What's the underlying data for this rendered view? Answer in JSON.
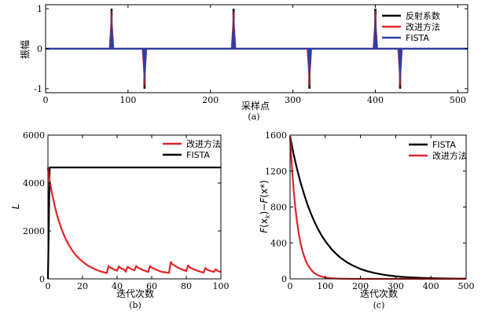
{
  "chart_data": [
    {
      "id": "a",
      "type": "line",
      "caption": "(a)",
      "xlabel": "采样点",
      "ylabel": "振幅",
      "xlim": [
        0,
        512
      ],
      "ylim": [
        -1.1,
        1.1
      ],
      "xticks": [
        0,
        100,
        200,
        300,
        400,
        500
      ],
      "yticks": [
        -1,
        0,
        1
      ],
      "spikes": [
        {
          "x": 80,
          "value": 1
        },
        {
          "x": 120,
          "value": -1
        },
        {
          "x": 228,
          "value": 1
        },
        {
          "x": 320,
          "value": -1
        },
        {
          "x": 400,
          "value": 1
        },
        {
          "x": 430,
          "value": -1
        }
      ],
      "series": [
        {
          "name": "反射系数",
          "color": "#000000"
        },
        {
          "name": "改进方法",
          "color": "#e0242a"
        },
        {
          "name": "FISTA",
          "color": "#2b3fa6"
        }
      ],
      "legend_position": "top-right"
    },
    {
      "id": "b",
      "type": "line",
      "caption": "(b)",
      "xlabel": "迭代次数",
      "ylabel": "L",
      "xlim": [
        0,
        100
      ],
      "ylim": [
        0,
        6000
      ],
      "xticks": [
        0,
        20,
        40,
        60,
        80,
        100
      ],
      "yticks": [
        0,
        2000,
        4000,
        6000
      ],
      "series": [
        {
          "name": "改进方法",
          "color": "#e0242a",
          "x": [
            0,
            1,
            2,
            3,
            4,
            5,
            6,
            8,
            10,
            12,
            14,
            16,
            18,
            20,
            22,
            24,
            26,
            28,
            30,
            32,
            34,
            35,
            36,
            38,
            40,
            41,
            42,
            44,
            45,
            46,
            48,
            50,
            51,
            52,
            54,
            56,
            58,
            59,
            60,
            62,
            64,
            66,
            70,
            71,
            72,
            74,
            76,
            78,
            80,
            81,
            82,
            84,
            86,
            88,
            90,
            91,
            92,
            94,
            96,
            97,
            98,
            100
          ],
          "y": [
            4650,
            4100,
            3700,
            3350,
            3020,
            2730,
            2480,
            2050,
            1700,
            1420,
            1190,
            1000,
            850,
            720,
            610,
            520,
            440,
            380,
            320,
            280,
            240,
            540,
            470,
            400,
            340,
            520,
            450,
            390,
            300,
            500,
            420,
            350,
            540,
            470,
            400,
            340,
            290,
            540,
            470,
            400,
            340,
            290,
            250,
            700,
            610,
            520,
            440,
            380,
            330,
            560,
            480,
            410,
            350,
            300,
            260,
            450,
            390,
            330,
            290,
            400,
            340,
            290
          ]
        },
        {
          "name": "FISTA",
          "color": "#000000",
          "x": [
            0,
            1,
            100
          ],
          "y": [
            0,
            4650,
            4650
          ]
        }
      ],
      "legend_position": "top-right"
    },
    {
      "id": "c",
      "type": "line",
      "caption": "(c)",
      "xlabel": "迭代次数",
      "ylabel": "F(x_k)−F(x*)",
      "ylabel_parts": [
        "F",
        "(x",
        "k",
        ")−",
        "F",
        "(x*)"
      ],
      "xlim": [
        0,
        500
      ],
      "ylim": [
        0,
        1600
      ],
      "xticks": [
        0,
        100,
        200,
        300,
        400,
        500
      ],
      "yticks": [
        0,
        400,
        800,
        1200,
        1600
      ],
      "series": [
        {
          "name": "FISTA",
          "color": "#000000",
          "x": [
            0,
            10,
            20,
            30,
            40,
            50,
            60,
            70,
            80,
            90,
            100,
            120,
            140,
            160,
            180,
            200,
            220,
            240,
            260,
            280,
            300,
            320,
            340,
            360,
            380,
            400,
            420,
            440,
            460,
            480,
            500
          ],
          "y": [
            1590,
            1390,
            1220,
            1070,
            940,
            820,
            720,
            630,
            550,
            480,
            420,
            320,
            245,
            188,
            145,
            110,
            85,
            65,
            50,
            38,
            29,
            22,
            17,
            13,
            10,
            8,
            6,
            4.5,
            3.5,
            2.5,
            2
          ]
        },
        {
          "name": "改进方法",
          "color": "#e0242a",
          "x": [
            0,
            5,
            10,
            15,
            20,
            25,
            30,
            35,
            40,
            45,
            50,
            60,
            70,
            80,
            90,
            100,
            110,
            120,
            130,
            140,
            150,
            175,
            200,
            500
          ],
          "y": [
            1590,
            1260,
            1000,
            790,
            630,
            500,
            395,
            315,
            250,
            198,
            157,
            99,
            62,
            39,
            25,
            16,
            10,
            6.3,
            4,
            2.5,
            1.6,
            0.5,
            0.1,
            0
          ]
        }
      ],
      "legend_position": "top-right"
    }
  ]
}
